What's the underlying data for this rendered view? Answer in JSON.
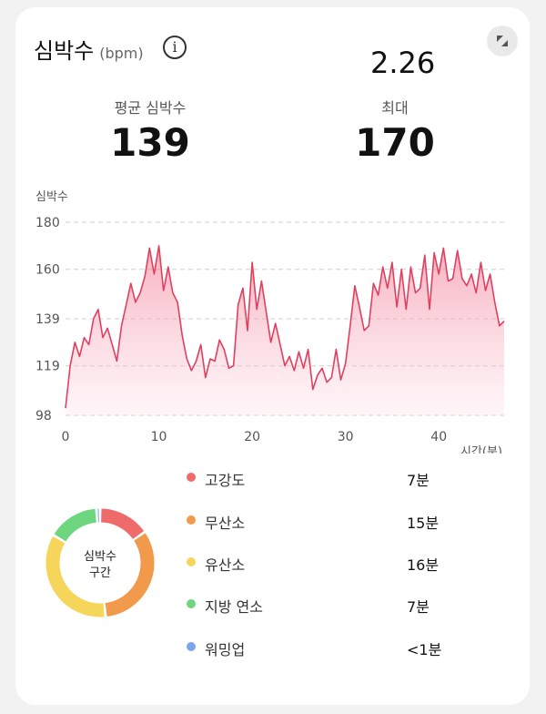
{
  "header": {
    "title": "심박수",
    "unit": "(bpm)",
    "date": "2.26"
  },
  "stats": {
    "average_label": "평균 심박수",
    "average_value": "139",
    "max_label": "최대",
    "max_value": "170"
  },
  "chart_data": {
    "type": "area",
    "ylabel": "심박수",
    "xlabel": "시간(분)",
    "y_ticks": [
      "180",
      "160",
      "139",
      "119",
      "98"
    ],
    "x_ticks": [
      "0",
      "10",
      "20",
      "30",
      "40"
    ],
    "ylim": [
      98,
      180
    ],
    "xlim": [
      0,
      47
    ],
    "grid": true,
    "color": "#e0405f",
    "x": [
      0,
      0.5,
      1,
      1.5,
      2,
      2.5,
      3,
      3.5,
      4,
      4.5,
      5,
      5.5,
      6,
      6.5,
      7,
      7.5,
      8,
      8.5,
      9,
      9.5,
      10,
      10.5,
      11,
      11.5,
      12,
      12.5,
      13,
      13.5,
      14,
      14.5,
      15,
      15.5,
      16,
      16.5,
      17,
      17.5,
      18,
      18.5,
      19,
      19.5,
      20,
      20.5,
      21,
      21.5,
      22,
      22.5,
      23,
      23.5,
      24,
      24.5,
      25,
      25.5,
      26,
      26.5,
      27,
      27.5,
      28,
      28.5,
      29,
      29.5,
      30,
      30.5,
      31,
      31.5,
      32,
      32.5,
      33,
      33.5,
      34,
      34.5,
      35,
      35.5,
      36,
      36.5,
      37,
      37.5,
      38,
      38.5,
      39,
      39.5,
      40,
      40.5,
      41,
      41.5,
      42,
      42.5,
      43,
      43.5,
      44,
      44.5,
      45,
      45.5,
      46,
      46.5,
      47
    ],
    "y": [
      101,
      119,
      129,
      123,
      131,
      128,
      139,
      143,
      131,
      135,
      128,
      121,
      136,
      145,
      154,
      146,
      150,
      157,
      169,
      158,
      170,
      151,
      161,
      150,
      146,
      132,
      122,
      117,
      121,
      128,
      114,
      122,
      121,
      130,
      126,
      118,
      119,
      145,
      152,
      134,
      163,
      143,
      155,
      142,
      129,
      137,
      128,
      119,
      123,
      117,
      125,
      118,
      126,
      109,
      115,
      118,
      112,
      114,
      126,
      113,
      120,
      136,
      153,
      144,
      134,
      136,
      154,
      149,
      161,
      152,
      163,
      144,
      160,
      143,
      161,
      150,
      152,
      166,
      143,
      167,
      158,
      169,
      155,
      156,
      168,
      156,
      153,
      158,
      150,
      163,
      151,
      158,
      146,
      136,
      138
    ]
  },
  "zones": {
    "center_line1": "심박수",
    "center_line2": "구간",
    "items": [
      {
        "name": "고강도",
        "value": "7분",
        "color": "#ef6b6b",
        "minutes": 7
      },
      {
        "name": "무산소",
        "value": "15분",
        "color": "#f29a4b",
        "minutes": 15
      },
      {
        "name": "유산소",
        "value": "16분",
        "color": "#f6d65a",
        "minutes": 16
      },
      {
        "name": "지방 연소",
        "value": "7분",
        "color": "#6dd67f",
        "minutes": 7
      },
      {
        "name": "워밍업",
        "value": "<1분",
        "color": "#7aa6ee",
        "minutes": 0.5
      }
    ]
  }
}
